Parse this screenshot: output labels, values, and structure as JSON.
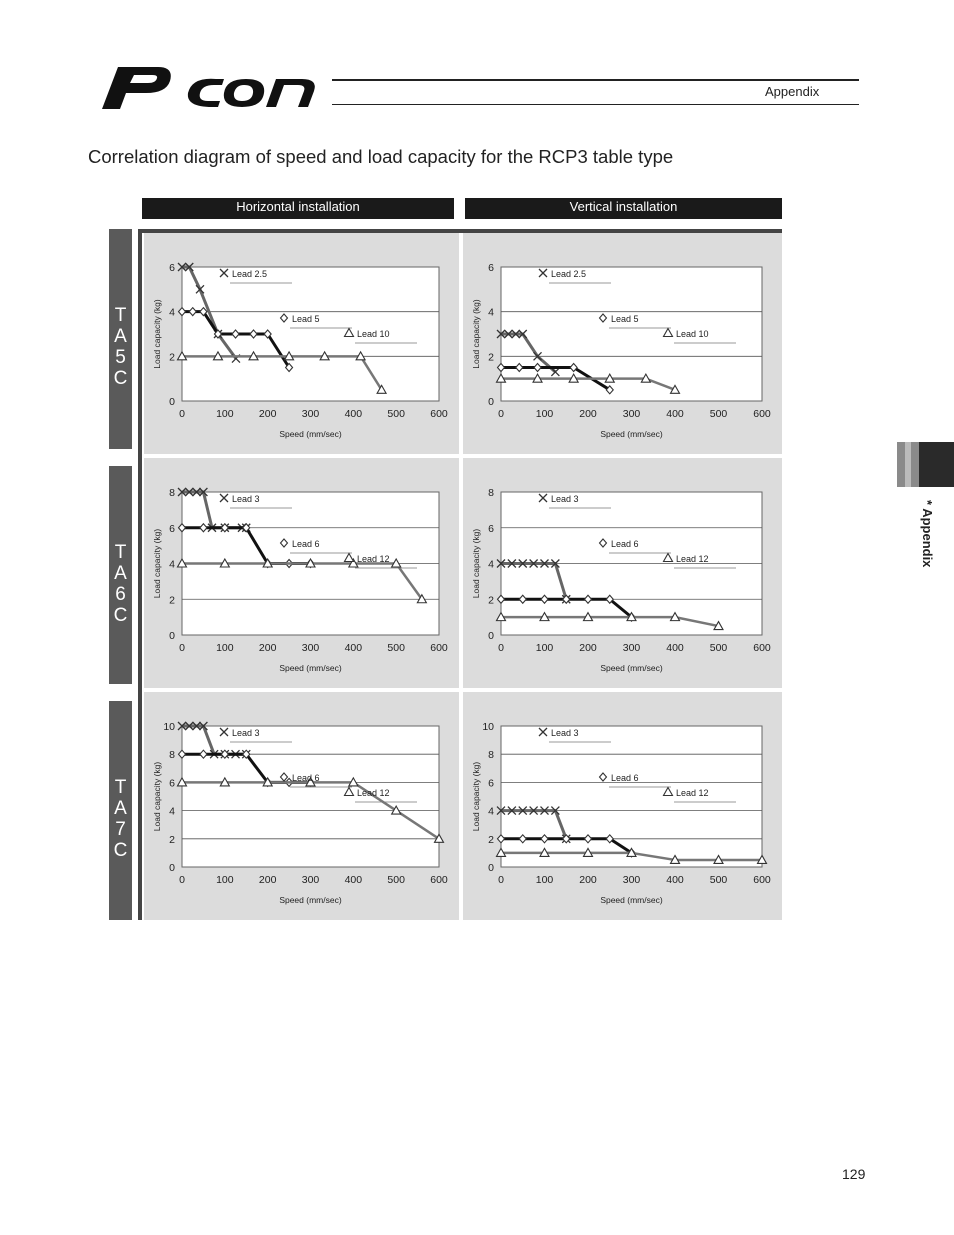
{
  "header": {
    "logo_text": "PCON",
    "section": "Appendix"
  },
  "page_title": "Correlation diagram of speed and load capacity for the RCP3 table type",
  "columns": [
    "Horizontal installation",
    "Vertical installation"
  ],
  "models": [
    "TA5C",
    "TA6C",
    "TA7C"
  ],
  "side_tab": "* Appendix",
  "page_number": "129",
  "chart_data": [
    {
      "type": "line",
      "model": "TA5C",
      "installation": "Horizontal",
      "xlabel": "Speed (mm/sec)",
      "ylabel": "Load capacity (kg)",
      "xlim": [
        0,
        600
      ],
      "ylim": [
        0,
        6
      ],
      "xticks": [
        0,
        100,
        200,
        300,
        400,
        500,
        600
      ],
      "yticks": [
        0,
        2,
        4,
        6
      ],
      "series": [
        {
          "name": "Lead 2.5",
          "marker": "x",
          "x": [
            0,
            17,
            42,
            84,
            126
          ],
          "y": [
            6,
            6,
            5,
            3,
            1.9
          ]
        },
        {
          "name": "Lead 5",
          "marker": "diamond",
          "x": [
            0,
            25,
            50,
            84,
            125,
            167,
            200,
            250
          ],
          "y": [
            4,
            4,
            4,
            3,
            3,
            3,
            3,
            1.5
          ]
        },
        {
          "name": "Lead 10",
          "marker": "triangle",
          "x": [
            0,
            84,
            167,
            250,
            333,
            417,
            466
          ],
          "y": [
            2,
            2,
            2,
            2,
            2,
            2,
            0.5
          ]
        }
      ]
    },
    {
      "type": "line",
      "model": "TA5C",
      "installation": "Vertical",
      "xlabel": "Speed (mm/sec)",
      "ylabel": "Load capacity (kg)",
      "xlim": [
        0,
        600
      ],
      "ylim": [
        0,
        6
      ],
      "xticks": [
        0,
        100,
        200,
        300,
        400,
        500,
        600
      ],
      "yticks": [
        0,
        2,
        4,
        6
      ],
      "series": [
        {
          "name": "Lead 2.5",
          "marker": "x",
          "x": [
            0,
            17,
            34,
            50,
            84,
            125
          ],
          "y": [
            3,
            3,
            3,
            3,
            2,
            1.3
          ]
        },
        {
          "name": "Lead 5",
          "marker": "diamond",
          "x": [
            0,
            42,
            84,
            167,
            250
          ],
          "y": [
            1.5,
            1.5,
            1.5,
            1.5,
            0.5
          ]
        },
        {
          "name": "Lead 10",
          "marker": "triangle",
          "x": [
            0,
            84,
            167,
            250,
            333,
            400
          ],
          "y": [
            1,
            1,
            1,
            1,
            1,
            0.5
          ]
        }
      ]
    },
    {
      "type": "line",
      "model": "TA6C",
      "installation": "Horizontal",
      "xlabel": "Speed (mm/sec)",
      "ylabel": "Load capacity (kg)",
      "xlim": [
        0,
        600
      ],
      "ylim": [
        0,
        8
      ],
      "xticks": [
        0,
        100,
        200,
        300,
        400,
        500,
        600
      ],
      "yticks": [
        0,
        2,
        4,
        6,
        8
      ],
      "series": [
        {
          "name": "Lead 3",
          "marker": "x",
          "x": [
            0,
            17,
            34,
            50,
            70,
            100,
            140,
            150
          ],
          "y": [
            8,
            8,
            8,
            8,
            6,
            6,
            6,
            6
          ]
        },
        {
          "name": "Lead 6",
          "marker": "diamond",
          "x": [
            0,
            50,
            100,
            150,
            200,
            250,
            300
          ],
          "y": [
            6,
            6,
            6,
            6,
            4,
            4,
            4
          ]
        },
        {
          "name": "Lead 12",
          "marker": "triangle",
          "x": [
            0,
            100,
            200,
            300,
            400,
            500,
            560
          ],
          "y": [
            4,
            4,
            4,
            4,
            4,
            4,
            2
          ]
        }
      ]
    },
    {
      "type": "line",
      "model": "TA6C",
      "installation": "Vertical",
      "xlabel": "Speed (mm/sec)",
      "ylabel": "Load capacity (kg)",
      "xlim": [
        0,
        600
      ],
      "ylim": [
        0,
        8
      ],
      "xticks": [
        0,
        100,
        200,
        300,
        400,
        500,
        600
      ],
      "yticks": [
        0,
        2,
        4,
        6,
        8
      ],
      "series": [
        {
          "name": "Lead 3",
          "marker": "x",
          "x": [
            0,
            25,
            50,
            75,
            100,
            125,
            150
          ],
          "y": [
            4,
            4,
            4,
            4,
            4,
            4,
            2
          ]
        },
        {
          "name": "Lead 6",
          "marker": "diamond",
          "x": [
            0,
            50,
            100,
            150,
            200,
            250,
            300
          ],
          "y": [
            2,
            2,
            2,
            2,
            2,
            2,
            1
          ]
        },
        {
          "name": "Lead 12",
          "marker": "triangle",
          "x": [
            0,
            100,
            200,
            300,
            400,
            500
          ],
          "y": [
            1,
            1,
            1,
            1,
            1,
            0.5
          ]
        }
      ]
    },
    {
      "type": "line",
      "model": "TA7C",
      "installation": "Horizontal",
      "xlabel": "Speed (mm/sec)",
      "ylabel": "Load capacity (kg)",
      "xlim": [
        0,
        600
      ],
      "ylim": [
        0,
        10
      ],
      "xticks": [
        0,
        100,
        200,
        300,
        400,
        500,
        600
      ],
      "yticks": [
        0,
        2,
        4,
        6,
        8,
        10
      ],
      "series": [
        {
          "name": "Lead 3",
          "marker": "x",
          "x": [
            0,
            17,
            34,
            50,
            75,
            100,
            125,
            150
          ],
          "y": [
            10,
            10,
            10,
            10,
            8,
            8,
            8,
            8
          ]
        },
        {
          "name": "Lead 6",
          "marker": "diamond",
          "x": [
            0,
            50,
            100,
            150,
            200,
            250,
            300
          ],
          "y": [
            8,
            8,
            8,
            8,
            6,
            6,
            6
          ]
        },
        {
          "name": "Lead 12",
          "marker": "triangle",
          "x": [
            0,
            100,
            200,
            300,
            400,
            500,
            600
          ],
          "y": [
            6,
            6,
            6,
            6,
            6,
            4,
            2
          ]
        }
      ]
    },
    {
      "type": "line",
      "model": "TA7C",
      "installation": "Vertical",
      "xlabel": "Speed (mm/sec)",
      "ylabel": "Load capacity (kg)",
      "xlim": [
        0,
        600
      ],
      "ylim": [
        0,
        10
      ],
      "xticks": [
        0,
        100,
        200,
        300,
        400,
        500,
        600
      ],
      "yticks": [
        0,
        2,
        4,
        6,
        8,
        10
      ],
      "series": [
        {
          "name": "Lead 3",
          "marker": "x",
          "x": [
            0,
            25,
            50,
            75,
            100,
            125,
            150
          ],
          "y": [
            4,
            4,
            4,
            4,
            4,
            4,
            2
          ]
        },
        {
          "name": "Lead 6",
          "marker": "diamond",
          "x": [
            0,
            50,
            100,
            150,
            200,
            250,
            300
          ],
          "y": [
            2,
            2,
            2,
            2,
            2,
            2,
            1
          ]
        },
        {
          "name": "Lead 12",
          "marker": "triangle",
          "x": [
            0,
            100,
            200,
            300,
            400,
            500,
            600
          ],
          "y": [
            1,
            1,
            1,
            1,
            0.5,
            0.5,
            0.5
          ]
        }
      ]
    }
  ]
}
